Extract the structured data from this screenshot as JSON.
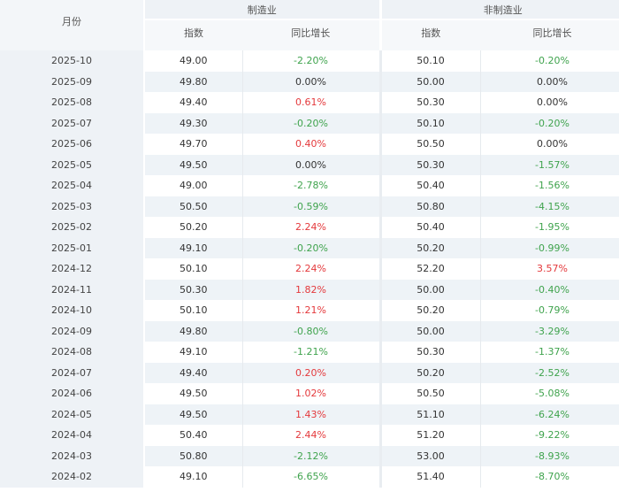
{
  "header": {
    "month_label": "月份",
    "manufacturing_label": "制造业",
    "non_manufacturing_label": "非制造业",
    "index_label": "指数",
    "yoy_label": "同比增长"
  },
  "colors": {
    "up": "#e4393c",
    "down": "#3fa34d",
    "flat": "#333333"
  },
  "rows": [
    {
      "month": "2025-10",
      "mfg_index": "49.00",
      "mfg_yoy": "-2.20%",
      "non_index": "50.10",
      "non_yoy": "-0.20%"
    },
    {
      "month": "2025-09",
      "mfg_index": "49.80",
      "mfg_yoy": "0.00%",
      "non_index": "50.00",
      "non_yoy": "0.00%"
    },
    {
      "month": "2025-08",
      "mfg_index": "49.40",
      "mfg_yoy": "0.61%",
      "non_index": "50.30",
      "non_yoy": "0.00%"
    },
    {
      "month": "2025-07",
      "mfg_index": "49.30",
      "mfg_yoy": "-0.20%",
      "non_index": "50.10",
      "non_yoy": "-0.20%"
    },
    {
      "month": "2025-06",
      "mfg_index": "49.70",
      "mfg_yoy": "0.40%",
      "non_index": "50.50",
      "non_yoy": "0.00%"
    },
    {
      "month": "2025-05",
      "mfg_index": "49.50",
      "mfg_yoy": "0.00%",
      "non_index": "50.30",
      "non_yoy": "-1.57%"
    },
    {
      "month": "2025-04",
      "mfg_index": "49.00",
      "mfg_yoy": "-2.78%",
      "non_index": "50.40",
      "non_yoy": "-1.56%"
    },
    {
      "month": "2025-03",
      "mfg_index": "50.50",
      "mfg_yoy": "-0.59%",
      "non_index": "50.80",
      "non_yoy": "-4.15%"
    },
    {
      "month": "2025-02",
      "mfg_index": "50.20",
      "mfg_yoy": "2.24%",
      "non_index": "50.40",
      "non_yoy": "-1.95%"
    },
    {
      "month": "2025-01",
      "mfg_index": "49.10",
      "mfg_yoy": "-0.20%",
      "non_index": "50.20",
      "non_yoy": "-0.99%"
    },
    {
      "month": "2024-12",
      "mfg_index": "50.10",
      "mfg_yoy": "2.24%",
      "non_index": "52.20",
      "non_yoy": "3.57%"
    },
    {
      "month": "2024-11",
      "mfg_index": "50.30",
      "mfg_yoy": "1.82%",
      "non_index": "50.00",
      "non_yoy": "-0.40%"
    },
    {
      "month": "2024-10",
      "mfg_index": "50.10",
      "mfg_yoy": "1.21%",
      "non_index": "50.20",
      "non_yoy": "-0.79%"
    },
    {
      "month": "2024-09",
      "mfg_index": "49.80",
      "mfg_yoy": "-0.80%",
      "non_index": "50.00",
      "non_yoy": "-3.29%"
    },
    {
      "month": "2024-08",
      "mfg_index": "49.10",
      "mfg_yoy": "-1.21%",
      "non_index": "50.30",
      "non_yoy": "-1.37%"
    },
    {
      "month": "2024-07",
      "mfg_index": "49.40",
      "mfg_yoy": "0.20%",
      "non_index": "50.20",
      "non_yoy": "-2.52%"
    },
    {
      "month": "2024-06",
      "mfg_index": "49.50",
      "mfg_yoy": "1.02%",
      "non_index": "50.50",
      "non_yoy": "-5.08%"
    },
    {
      "month": "2024-05",
      "mfg_index": "49.50",
      "mfg_yoy": "1.43%",
      "non_index": "51.10",
      "non_yoy": "-6.24%"
    },
    {
      "month": "2024-04",
      "mfg_index": "50.40",
      "mfg_yoy": "2.44%",
      "non_index": "51.20",
      "non_yoy": "-9.22%"
    },
    {
      "month": "2024-03",
      "mfg_index": "50.80",
      "mfg_yoy": "-2.12%",
      "non_index": "53.00",
      "non_yoy": "-8.93%"
    },
    {
      "month": "2024-02",
      "mfg_index": "49.10",
      "mfg_yoy": "-6.65%",
      "non_index": "51.40",
      "non_yoy": "-8.70%"
    }
  ]
}
